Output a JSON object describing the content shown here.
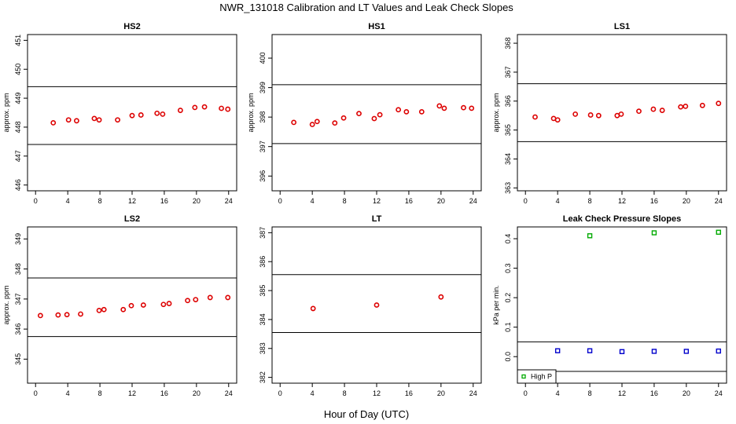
{
  "figure": {
    "title": "NWR_131018  Calibration and LT Values and Leak Check Slopes",
    "xlabel": "Hour of Day (UTC)"
  },
  "chart_data": [
    {
      "type": "scatter",
      "title": "HS2",
      "ylabel": "approx. ppm",
      "xlim": [
        0,
        24
      ],
      "ylim": [
        445.8,
        451.2
      ],
      "xticks": [
        "0",
        "4",
        "8",
        "12",
        "16",
        "20",
        "24"
      ],
      "yticks": [
        "446",
        "447",
        "448",
        "449",
        "450",
        "451"
      ],
      "hlines": [
        447.4,
        449.4
      ],
      "point_color": "#dd0000",
      "series": [
        {
          "x": [
            2.2,
            4.1,
            5.1,
            7.3,
            7.9,
            10.2,
            12.0,
            13.1,
            15.1,
            15.8,
            18.0,
            19.8,
            21.0,
            23.1,
            23.9
          ],
          "y": [
            448.15,
            448.25,
            448.22,
            448.3,
            448.25,
            448.25,
            448.4,
            448.42,
            448.48,
            448.45,
            448.58,
            448.68,
            448.7,
            448.65,
            448.62
          ]
        }
      ]
    },
    {
      "type": "scatter",
      "title": "HS1",
      "ylabel": "approx. ppm",
      "xlim": [
        0,
        24
      ],
      "ylim": [
        395.5,
        400.8
      ],
      "xticks": [
        "0",
        "4",
        "8",
        "12",
        "16",
        "20",
        "24"
      ],
      "yticks": [
        "396",
        "397",
        "398",
        "399",
        "400"
      ],
      "hlines": [
        397.1,
        399.1
      ],
      "point_color": "#dd0000",
      "series": [
        {
          "x": [
            1.7,
            4.0,
            4.6,
            6.8,
            7.9,
            9.8,
            11.7,
            12.4,
            14.7,
            15.7,
            17.6,
            19.8,
            20.4,
            22.8,
            23.8
          ],
          "y": [
            397.82,
            397.75,
            397.85,
            397.8,
            397.97,
            398.12,
            397.95,
            398.08,
            398.25,
            398.18,
            398.18,
            398.38,
            398.3,
            398.32,
            398.3
          ]
        }
      ]
    },
    {
      "type": "scatter",
      "title": "LS1",
      "ylabel": "approx. ppm",
      "xlim": [
        0,
        24
      ],
      "ylim": [
        362.9,
        368.3
      ],
      "xticks": [
        "0",
        "4",
        "8",
        "12",
        "16",
        "20",
        "24"
      ],
      "yticks": [
        "363",
        "364",
        "365",
        "366",
        "367",
        "368"
      ],
      "hlines": [
        364.6,
        366.6
      ],
      "point_color": "#dd0000",
      "series": [
        {
          "x": [
            1.2,
            3.5,
            4.0,
            6.2,
            8.1,
            9.1,
            11.4,
            11.9,
            14.1,
            15.9,
            17.0,
            19.3,
            19.9,
            22.0,
            24.0
          ],
          "y": [
            365.45,
            365.4,
            365.35,
            365.55,
            365.52,
            365.5,
            365.5,
            365.55,
            365.65,
            365.72,
            365.68,
            365.8,
            365.82,
            365.85,
            365.92
          ]
        }
      ]
    },
    {
      "type": "scatter",
      "title": "LS2",
      "ylabel": "approx. ppm",
      "xlim": [
        0,
        24
      ],
      "ylim": [
        344.2,
        349.4
      ],
      "xticks": [
        "0",
        "4",
        "8",
        "12",
        "16",
        "20",
        "24"
      ],
      "yticks": [
        "345",
        "346",
        "347",
        "348",
        "349"
      ],
      "hlines": [
        345.75,
        347.7
      ],
      "point_color": "#dd0000",
      "series": [
        {
          "x": [
            0.6,
            2.8,
            3.9,
            5.6,
            7.9,
            8.5,
            10.9,
            11.9,
            13.4,
            15.9,
            16.6,
            18.9,
            19.9,
            21.7,
            23.9
          ],
          "y": [
            346.45,
            346.47,
            346.48,
            346.5,
            346.62,
            346.65,
            346.65,
            346.78,
            346.8,
            346.82,
            346.85,
            346.95,
            346.98,
            347.05,
            347.05
          ]
        }
      ]
    },
    {
      "type": "scatter",
      "title": "LT",
      "ylabel": "",
      "xlim": [
        0,
        24
      ],
      "ylim": [
        381.8,
        387.2
      ],
      "xticks": [
        "0",
        "4",
        "8",
        "12",
        "16",
        "20",
        "24"
      ],
      "yticks": [
        "382",
        "383",
        "384",
        "385",
        "386",
        "387"
      ],
      "hlines": [
        383.55,
        385.55
      ],
      "point_color": "#dd0000",
      "series": [
        {
          "x": [
            4.1,
            12.0,
            20.0
          ],
          "y": [
            384.38,
            384.5,
            384.78
          ]
        }
      ]
    },
    {
      "type": "scatter",
      "title": "Leak Check Pressure Slopes",
      "ylabel": "kPa per min.",
      "xlim": [
        0,
        24
      ],
      "ylim": [
        -0.09,
        0.44
      ],
      "xticks": [
        "0",
        "4",
        "8",
        "12",
        "16",
        "20",
        "24"
      ],
      "yticks": [
        "0.0",
        "0.1",
        "0.2",
        "0.3",
        "0.4"
      ],
      "hlines": [
        0.05,
        -0.05
      ],
      "legend": {
        "position": "bottom-left",
        "label": "High P",
        "color": "#00aa00"
      },
      "series": [
        {
          "name": "High P",
          "color": "#00aa00",
          "x": [
            8,
            16,
            24
          ],
          "y": [
            0.41,
            0.42,
            0.422
          ]
        },
        {
          "color": "#0000cc",
          "x": [
            4,
            8,
            12,
            16,
            20,
            24
          ],
          "y": [
            0.02,
            0.02,
            0.017,
            0.018,
            0.018,
            0.019
          ]
        }
      ]
    }
  ]
}
